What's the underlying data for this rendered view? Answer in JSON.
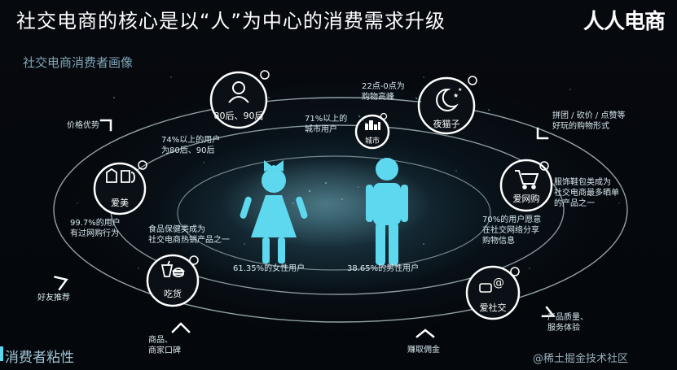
{
  "header": {
    "title": "社交电商的核心是以“人”为中心的消费需求升级",
    "brand": "人人电商",
    "subtitle": "社交电商消费者画像"
  },
  "center": {
    "female_label": "61.35%的女性用户",
    "male_label": "38.65%的男性用户"
  },
  "nodes": [
    {
      "label": "80后、90后",
      "icon": "person-icon"
    },
    {
      "label": "城市",
      "icon": "city-icon"
    },
    {
      "label": "夜猫子",
      "icon": "moon-icon"
    },
    {
      "label": "爱美",
      "icon": "clothes-icon"
    },
    {
      "label": "爱网购",
      "icon": "cart-icon"
    },
    {
      "label": "吃货",
      "icon": "food-icon"
    },
    {
      "label": "爱社交",
      "icon": "chat-icon"
    }
  ],
  "annotations": {
    "age": [
      "74%以上的用户",
      "为80后、90后"
    ],
    "city": [
      "71%以上的",
      "城市用户"
    ],
    "night": [
      "22点-0点为",
      "购物高峰"
    ],
    "beauty": [
      "99.7%的用户",
      "有过网购行为"
    ],
    "shop": [
      "服饰鞋包类成为",
      "社交电商最多晒单",
      "的产品之一"
    ],
    "food": [
      "食品保健类成为",
      "社交电商热销产品之一"
    ],
    "social": [
      "70%的用户愿意",
      "在社交网络分享",
      "购物信息"
    ]
  },
  "outer_labels": {
    "price": "价格优势",
    "group": [
      "拼团 / 砍价 / 点赞等",
      "好玩的购物形式"
    ],
    "friend": "好友推荐",
    "goods": [
      "商品、",
      "商家口碑"
    ],
    "commission": "赚取佣金",
    "quality": [
      "产品质量、",
      "服务体验"
    ]
  },
  "footer": {
    "stickiness": "消费者粘性",
    "watermark": "@稀土掘金技术社区"
  },
  "colors": {
    "accent": "#5ed8ee",
    "ring": "#dff4f8",
    "node_fill": "#0a1015",
    "background": "#05080d"
  }
}
